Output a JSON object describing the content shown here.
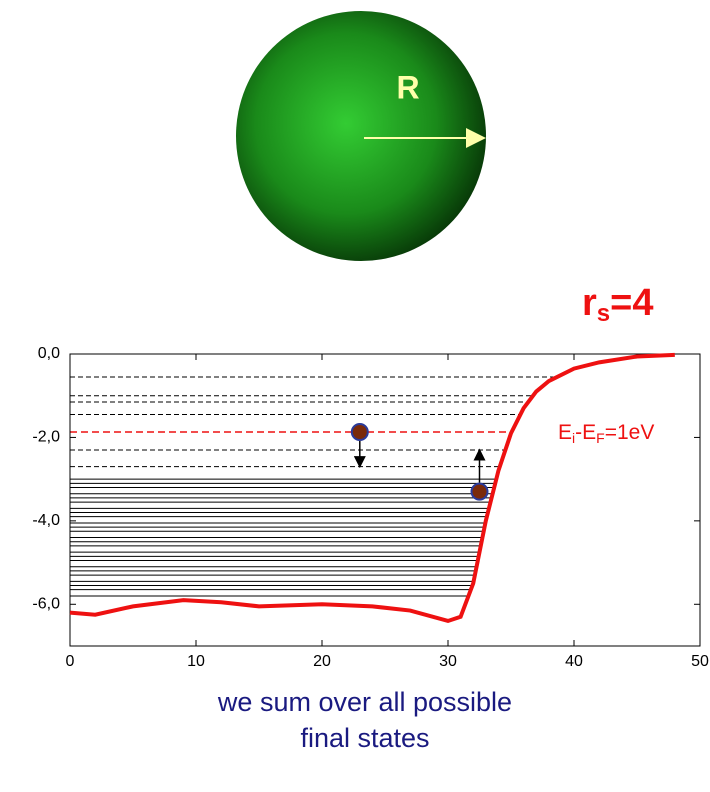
{
  "chart_data": {
    "type": "line",
    "sphere_label": "R",
    "rs_label": {
      "main": "r",
      "sub": "s",
      "rest": "=4"
    },
    "level_label": {
      "a": "E",
      "a_sub": "i",
      "mid": "-E",
      "b_sub": "F",
      "rest": "=1eV"
    },
    "caption": [
      "we sum over all possible",
      "final states"
    ],
    "x": [
      0,
      2,
      5,
      9,
      12,
      15,
      20,
      24,
      27,
      30,
      31,
      32,
      33,
      34,
      35,
      36,
      37,
      38,
      40,
      42,
      45,
      48
    ],
    "series": [
      {
        "color": "#ee1111",
        "values": [
          -6.2,
          -6.25,
          -6.05,
          -5.9,
          -5.95,
          -6.05,
          -6.0,
          -6.05,
          -6.15,
          -6.4,
          -6.3,
          -5.5,
          -4.0,
          -2.8,
          -1.9,
          -1.3,
          -0.9,
          -0.65,
          -0.35,
          -0.2,
          -0.06,
          -0.02
        ]
      }
    ],
    "initial_level": -1.87,
    "initial_color": "#ee1111",
    "dashed_levels": [
      -0.55,
      -1.0,
      -1.15,
      -1.45,
      -2.3,
      -2.7
    ],
    "solid_levels": [
      -3.0,
      -3.1,
      -3.2,
      -3.35,
      -3.45,
      -3.55,
      -3.7,
      -3.8,
      -3.9,
      -4.05,
      -4.15,
      -4.25,
      -4.4,
      -4.5,
      -4.6,
      -4.75,
      -4.85,
      -4.95,
      -5.1,
      -5.2,
      -5.3,
      -5.45,
      -5.55,
      -5.65,
      -5.8
    ],
    "electrons": [
      {
        "x": 23,
        "y": -1.87,
        "to": -2.7
      },
      {
        "x": 32.5,
        "y": -3.3,
        "to": -2.3
      }
    ],
    "xlim": [
      0,
      50
    ],
    "xticks": [
      0,
      10,
      20,
      30,
      40,
      50
    ],
    "ylim": [
      -7,
      0
    ],
    "yticks": [
      {
        "value": 0,
        "label": "0,0"
      },
      {
        "value": -2,
        "label": "-2,0"
      },
      {
        "value": -4,
        "label": "-4,0"
      },
      {
        "value": -6,
        "label": "-6,0"
      }
    ]
  }
}
